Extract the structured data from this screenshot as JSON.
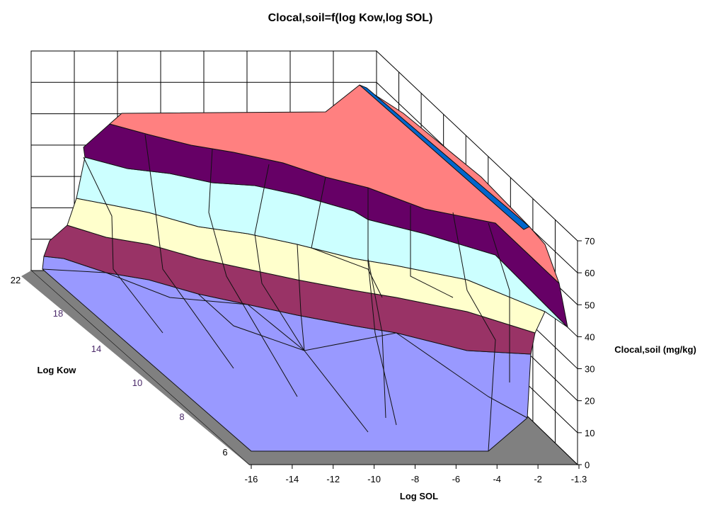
{
  "chart_data": {
    "type": "surface",
    "title": "Clocal,soil=f(log Kow,log SOL)",
    "xlabel": "Log SOL",
    "ylabel": "Log Kow",
    "zlabel": "Clocal,soil (mg/kg)",
    "x_ticks": [
      "-16",
      "-14",
      "-12",
      "-10",
      "-8",
      "-6",
      "-4",
      "-2",
      "-1.3"
    ],
    "y_ticks": [
      "6",
      "8",
      "10",
      "14",
      "18",
      "22"
    ],
    "z_ticks": [
      "0",
      "10",
      "20",
      "30",
      "40",
      "50",
      "60",
      "70"
    ],
    "zlim": [
      0,
      70
    ],
    "bands": [
      {
        "range": "0-10",
        "color": "#9999ff"
      },
      {
        "range": "10-20",
        "color": "#993366"
      },
      {
        "range": "20-30",
        "color": "#ffffcc"
      },
      {
        "range": "30-40",
        "color": "#ccffff"
      },
      {
        "range": "40-50",
        "color": "#660066"
      },
      {
        "range": "50-60",
        "color": "#ff8080"
      },
      {
        "range": "60-70",
        "color": "#0066cc"
      }
    ]
  }
}
